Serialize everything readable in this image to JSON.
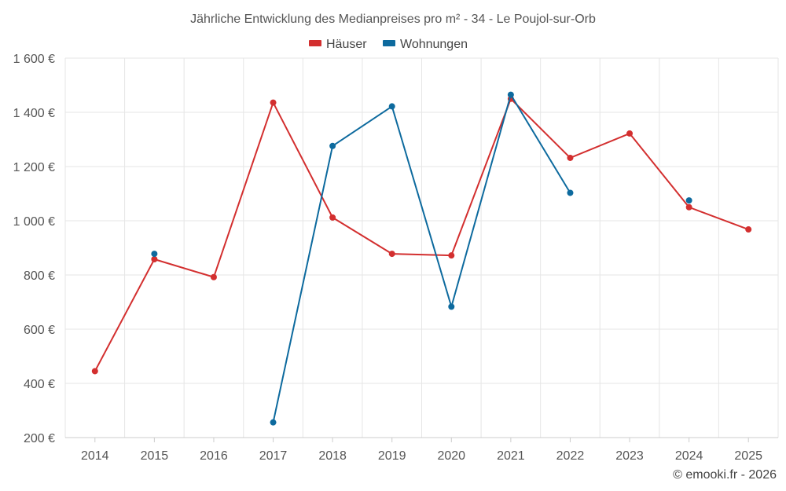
{
  "chart_data": {
    "type": "line",
    "title": "Jährliche Entwicklung des Medianpreises pro m² - 34 - Le Poujol-sur-Orb",
    "categories": [
      "2014",
      "2015",
      "2016",
      "2017",
      "2018",
      "2019",
      "2020",
      "2021",
      "2022",
      "2023",
      "2024",
      "2025"
    ],
    "ylim": [
      200,
      1600
    ],
    "yticks": [
      200,
      400,
      600,
      800,
      1000,
      1200,
      1400,
      1600
    ],
    "ytick_labels": [
      "200 €",
      "400 €",
      "600 €",
      "800 €",
      "1 000 €",
      "1 200 €",
      "1 400 €",
      "1 600 €"
    ],
    "grid": true,
    "legend_position": "top-center",
    "series": [
      {
        "name": "Häuser",
        "color": "#d32f2f",
        "values": [
          445,
          858,
          792,
          1436,
          1012,
          878,
          872,
          1450,
          1232,
          1322,
          1050,
          968
        ]
      },
      {
        "name": "Wohnungen",
        "color": "#0d6a9e",
        "values": [
          null,
          878,
          null,
          256,
          1276,
          1422,
          683,
          1465,
          1103,
          null,
          1075,
          null
        ]
      }
    ]
  },
  "credit": "© emooki.fr - 2026"
}
